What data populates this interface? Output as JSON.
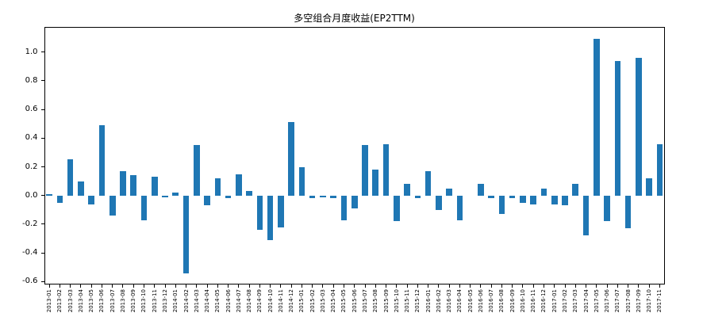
{
  "figure": {
    "background_color": "#ffffff",
    "bar_color": "#1f77b4",
    "axis_color": "#000000"
  },
  "chart_data": {
    "type": "bar",
    "title": "多空组合月度收益(EP2TTM)",
    "xlabel": "",
    "ylabel": "",
    "grid": false,
    "legend": "none",
    "ylim": [
      -0.62,
      1.175
    ],
    "yticks": [
      -0.6,
      -0.4,
      -0.2,
      0.0,
      0.2,
      0.4,
      0.6,
      0.8,
      1.0
    ],
    "categories": [
      "2013-01",
      "2013-02",
      "2013-03",
      "2013-04",
      "2013-05",
      "2013-06",
      "2013-07",
      "2013-08",
      "2013-09",
      "2013-10",
      "2013-11",
      "2013-12",
      "2014-01",
      "2014-02",
      "2014-03",
      "2014-04",
      "2014-05",
      "2014-06",
      "2014-07",
      "2014-08",
      "2014-09",
      "2014-10",
      "2014-11",
      "2014-12",
      "2015-01",
      "2015-02",
      "2015-03",
      "2015-04",
      "2015-05",
      "2015-06",
      "2015-07",
      "2015-08",
      "2015-09",
      "2015-10",
      "2015-11",
      "2015-12",
      "2016-01",
      "2016-02",
      "2016-03",
      "2016-04",
      "2016-05",
      "2016-06",
      "2016-07",
      "2016-08",
      "2016-09",
      "2016-10",
      "2016-11",
      "2016-12",
      "2017-01",
      "2017-02",
      "2017-03",
      "2017-04",
      "2017-05",
      "2017-06",
      "2017-07",
      "2017-08",
      "2017-09",
      "2017-10",
      "2017-11"
    ],
    "values": [
      0.01,
      -0.05,
      0.25,
      0.1,
      -0.06,
      0.49,
      -0.14,
      0.17,
      0.14,
      -0.17,
      0.13,
      -0.01,
      0.02,
      -0.54,
      0.35,
      -0.07,
      0.12,
      -0.02,
      0.15,
      0.03,
      -0.24,
      -0.31,
      -0.22,
      0.51,
      0.2,
      -0.02,
      -0.01,
      -0.02,
      -0.17,
      -0.09,
      0.35,
      0.18,
      0.36,
      -0.18,
      0.08,
      -0.02,
      0.17,
      -0.1,
      0.05,
      -0.17,
      0.0,
      0.08,
      -0.02,
      -0.13,
      -0.02,
      -0.05,
      -0.06,
      0.05,
      -0.06,
      -0.07,
      0.08,
      -0.28,
      1.09,
      -0.18,
      0.94,
      -0.23,
      0.96,
      0.12,
      0.36
    ]
  }
}
